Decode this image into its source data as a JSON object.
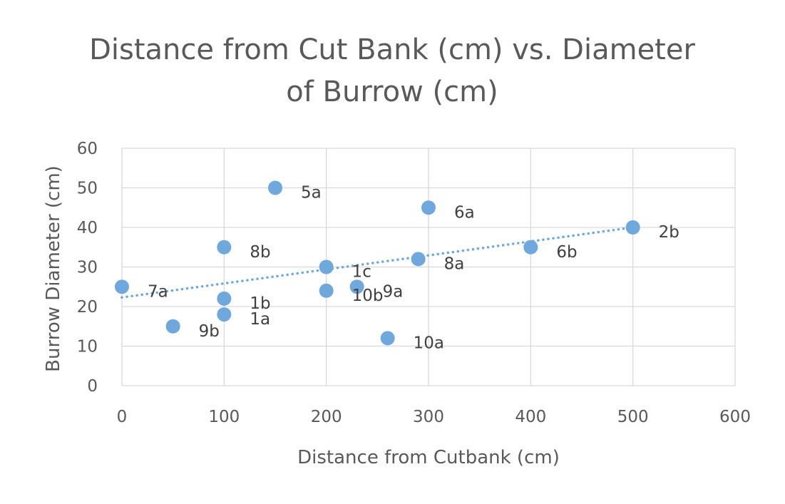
{
  "chart_data": {
    "type": "scatter",
    "title_lines": [
      "Distance from Cut Bank (cm) vs. Diameter",
      "of Burrow (cm)"
    ],
    "xlabel": "Distance from Cutbank (cm)",
    "ylabel": "Burrow Diameter (cm)",
    "xlim": [
      0,
      600
    ],
    "ylim": [
      0,
      60
    ],
    "xticks": [
      0,
      100,
      200,
      300,
      400,
      500,
      600
    ],
    "yticks": [
      0,
      10,
      20,
      30,
      40,
      50,
      60
    ],
    "grid": true,
    "marker_color": "#6FA8DC",
    "trendline": {
      "type": "linear",
      "style": "dotted",
      "color": "#6FA8DC",
      "from": [
        0,
        22.3
      ],
      "to": [
        500,
        40.0
      ]
    },
    "points": [
      {
        "label": "7a",
        "x": 0,
        "y": 25
      },
      {
        "label": "9b",
        "x": 50,
        "y": 15
      },
      {
        "label": "1a",
        "x": 100,
        "y": 18
      },
      {
        "label": "1b",
        "x": 100,
        "y": 22
      },
      {
        "label": "8b",
        "x": 100,
        "y": 35
      },
      {
        "label": "5a",
        "x": 150,
        "y": 50
      },
      {
        "label": "1c",
        "x": 200,
        "y": 30
      },
      {
        "label": "10b",
        "x": 200,
        "y": 24
      },
      {
        "label": "9a",
        "x": 230,
        "y": 25
      },
      {
        "label": "10a",
        "x": 260,
        "y": 12
      },
      {
        "label": "8a",
        "x": 290,
        "y": 32
      },
      {
        "label": "6a",
        "x": 300,
        "y": 45
      },
      {
        "label": "6b",
        "x": 400,
        "y": 35
      },
      {
        "label": "2b",
        "x": 500,
        "y": 40
      }
    ]
  }
}
